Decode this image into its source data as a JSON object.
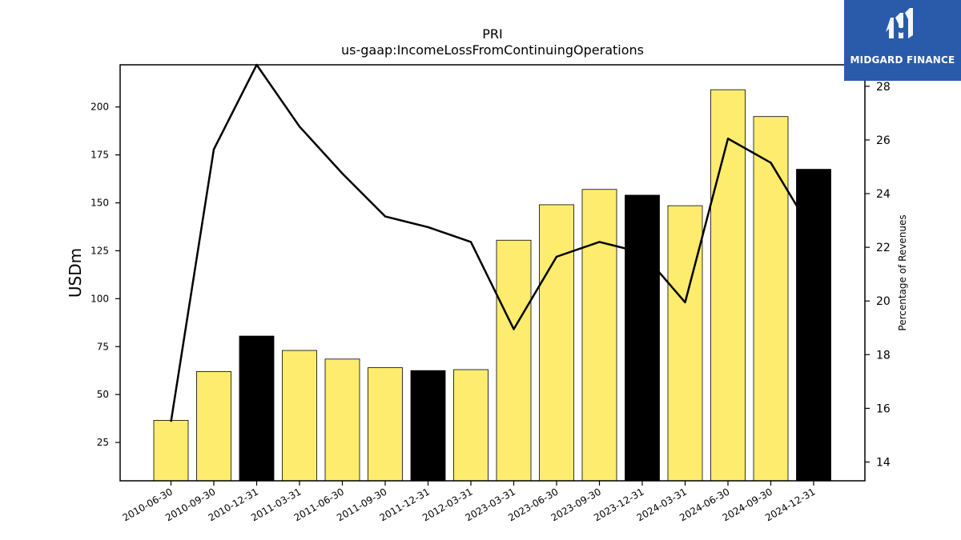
{
  "chart_data": {
    "type": "bar",
    "title": "PRI",
    "subtitle": "us-gaap:IncomeLossFromContinuingOperations",
    "ylabel": "USDm",
    "y2label": "Percentage of Revenues",
    "categories": [
      "2010-06-30",
      "2010-09-30",
      "2010-12-31",
      "2011-03-31",
      "2011-06-30",
      "2011-09-30",
      "2011-12-31",
      "2012-03-31",
      "2023-03-31",
      "2023-06-30",
      "2023-09-30",
      "2023-12-31",
      "2024-03-31",
      "2024-06-30",
      "2024-09-30",
      "2024-12-31"
    ],
    "values": [
      36.5,
      62,
      80.5,
      73,
      68.5,
      64,
      62.5,
      63,
      130.5,
      149,
      157,
      154,
      148.5,
      209,
      195,
      167.5
    ],
    "bar_colors": [
      "#fdec6e",
      "#fdec6e",
      "#000000",
      "#fdec6e",
      "#fdec6e",
      "#fdec6e",
      "#000000",
      "#fdec6e",
      "#fdec6e",
      "#fdec6e",
      "#fdec6e",
      "#000000",
      "#fdec6e",
      "#fdec6e",
      "#fdec6e",
      "#000000"
    ],
    "line_values": [
      15.5,
      25.65,
      29.0,
      26.5,
      24.75,
      23.15,
      22.75,
      22.2,
      18.95,
      21.65,
      22.2,
      21.8,
      19.95,
      26.05,
      25.15,
      22.5
    ],
    "ylim": [
      5,
      222
    ],
    "y2lim": [
      13.3,
      28.8
    ],
    "yticks": [
      25,
      50,
      75,
      100,
      125,
      150,
      175,
      200
    ],
    "y2ticks": [
      14,
      16,
      18,
      20,
      22,
      24,
      26,
      28
    ],
    "grid": false,
    "legend": "none"
  },
  "logo": {
    "text": "MIDGARD FINANCE",
    "background": "#2a5bab"
  }
}
